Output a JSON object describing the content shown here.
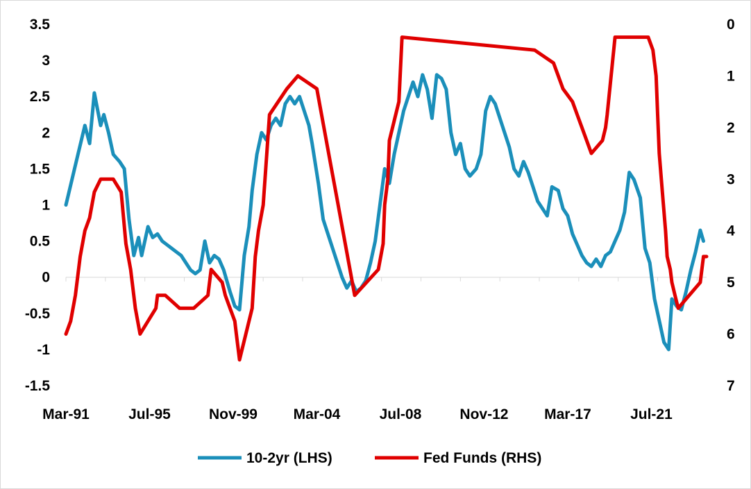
{
  "chart_data": {
    "type": "line",
    "title": "",
    "x_tick_labels": [
      "Mar-91",
      "Jul-95",
      "Nov-99",
      "Mar-04",
      "Jul-08",
      "Nov-12",
      "Mar-17",
      "Jul-21"
    ],
    "x_range": [
      "1991-03",
      "2025-01"
    ],
    "y_left": {
      "range": [
        -1.5,
        3.5
      ],
      "ticks": [
        "-1.5",
        "-1",
        "-0.5",
        "0",
        "0.5",
        "1",
        "1.5",
        "2",
        "2.5",
        "3",
        "3.5"
      ]
    },
    "y_right": {
      "range": [
        7,
        0
      ],
      "inverted": true,
      "ticks": [
        "0",
        "1",
        "2",
        "3",
        "4",
        "5",
        "6",
        "7"
      ]
    },
    "grid": false,
    "legend_position": "bottom",
    "series": [
      {
        "name": "10-2yr (LHS)",
        "axis": "left",
        "color": "#1b8fba",
        "x": [
          "1991-03",
          "1991-09",
          "1992-03",
          "1992-06",
          "1992-09",
          "1993-01",
          "1993-03",
          "1993-06",
          "1993-09",
          "1994-01",
          "1994-04",
          "1994-07",
          "1994-10",
          "1995-01",
          "1995-03",
          "1995-07",
          "1995-10",
          "1996-01",
          "1996-04",
          "1996-07",
          "1996-10",
          "1997-01",
          "1997-04",
          "1997-07",
          "1997-10",
          "1998-01",
          "1998-04",
          "1998-07",
          "1998-10",
          "1999-01",
          "1999-04",
          "1999-07",
          "1999-11",
          "2000-02",
          "2000-05",
          "2000-08",
          "2000-11",
          "2001-01",
          "2001-04",
          "2001-07",
          "2001-10",
          "2002-01",
          "2002-04",
          "2002-07",
          "2002-10",
          "2003-01",
          "2003-04",
          "2003-07",
          "2003-10",
          "2004-01",
          "2004-03",
          "2004-07",
          "2004-10",
          "2005-01",
          "2005-04",
          "2005-07",
          "2005-10",
          "2006-01",
          "2006-04",
          "2006-07",
          "2006-10",
          "2007-01",
          "2007-04",
          "2007-07",
          "2007-10",
          "2008-01",
          "2008-04",
          "2008-07",
          "2008-10",
          "2009-01",
          "2009-04",
          "2009-07",
          "2009-10",
          "2010-01",
          "2010-04",
          "2010-07",
          "2010-10",
          "2011-01",
          "2011-04",
          "2011-07",
          "2011-10",
          "2012-01",
          "2012-04",
          "2012-07",
          "2012-11",
          "2013-02",
          "2013-05",
          "2013-08",
          "2013-11",
          "2014-02",
          "2014-05",
          "2014-08",
          "2014-11",
          "2015-02",
          "2015-05",
          "2015-08",
          "2015-11",
          "2016-02",
          "2016-05",
          "2016-08",
          "2016-11",
          "2017-03",
          "2017-06",
          "2017-09",
          "2017-12",
          "2018-03",
          "2018-06",
          "2018-09",
          "2018-12",
          "2019-03",
          "2019-06",
          "2019-09",
          "2019-12",
          "2020-03",
          "2020-06",
          "2020-09",
          "2020-12",
          "2021-03",
          "2021-07",
          "2021-10",
          "2022-01",
          "2022-04",
          "2022-07",
          "2022-10",
          "2023-01",
          "2023-03",
          "2023-06",
          "2023-09",
          "2023-12",
          "2024-03",
          "2024-06",
          "2024-09",
          "2024-11"
        ],
        "y": [
          1.0,
          1.55,
          2.1,
          1.85,
          2.55,
          2.1,
          2.25,
          2.0,
          1.7,
          1.6,
          1.5,
          0.8,
          0.3,
          0.55,
          0.3,
          0.7,
          0.55,
          0.6,
          0.5,
          0.45,
          0.4,
          0.35,
          0.3,
          0.2,
          0.1,
          0.05,
          0.1,
          0.5,
          0.2,
          0.3,
          0.25,
          0.1,
          -0.2,
          -0.4,
          -0.45,
          0.3,
          0.7,
          1.2,
          1.7,
          2.0,
          1.9,
          2.1,
          2.2,
          2.1,
          2.4,
          2.5,
          2.4,
          2.5,
          2.3,
          2.1,
          1.85,
          1.3,
          0.8,
          0.6,
          0.4,
          0.2,
          0.0,
          -0.15,
          -0.05,
          -0.2,
          -0.15,
          -0.05,
          0.2,
          0.5,
          1.0,
          1.5,
          1.3,
          1.7,
          2.0,
          2.3,
          2.5,
          2.7,
          2.5,
          2.8,
          2.6,
          2.2,
          2.8,
          2.75,
          2.6,
          2.0,
          1.7,
          1.85,
          1.5,
          1.4,
          1.5,
          1.7,
          2.3,
          2.5,
          2.4,
          2.2,
          2.0,
          1.8,
          1.5,
          1.4,
          1.6,
          1.45,
          1.25,
          1.05,
          0.95,
          0.85,
          1.25,
          1.2,
          0.95,
          0.85,
          0.6,
          0.45,
          0.3,
          0.2,
          0.15,
          0.25,
          0.15,
          0.3,
          0.35,
          0.5,
          0.65,
          0.9,
          1.45,
          1.35,
          1.1,
          0.4,
          0.2,
          -0.3,
          -0.6,
          -0.9,
          -1.0,
          -0.3,
          -0.4,
          -0.45,
          -0.2,
          0.1,
          0.35,
          0.65,
          0.5
        ]
      },
      {
        "name": "Fed Funds (RHS)",
        "axis": "right",
        "color": "#e00000",
        "x": [
          "1991-03",
          "1991-06",
          "1991-09",
          "1991-12",
          "1992-03",
          "1992-06",
          "1992-09",
          "1993-01",
          "1993-06",
          "1993-09",
          "1994-02",
          "1994-05",
          "1994-08",
          "1994-11",
          "1995-02",
          "1995-07",
          "1995-12",
          "1996-01",
          "1996-06",
          "1997-03",
          "1997-12",
          "1998-09",
          "1998-10",
          "1998-11",
          "1999-06",
          "1999-08",
          "1999-11",
          "2000-02",
          "2000-03",
          "2000-05",
          "2001-01",
          "2001-03",
          "2001-05",
          "2001-08",
          "2001-12",
          "2002-11",
          "2003-06",
          "2004-06",
          "2004-09",
          "2004-12",
          "2005-03",
          "2005-06",
          "2005-09",
          "2005-12",
          "2006-03",
          "2006-06",
          "2007-09",
          "2007-12",
          "2008-01",
          "2008-03",
          "2008-04",
          "2008-10",
          "2008-12",
          "2015-12",
          "2016-12",
          "2017-03",
          "2017-06",
          "2017-12",
          "2018-03",
          "2018-06",
          "2018-09",
          "2018-12",
          "2019-07",
          "2019-09",
          "2019-10",
          "2020-03",
          "2021-12",
          "2022-03",
          "2022-05",
          "2022-06",
          "2022-07",
          "2022-09",
          "2022-11",
          "2022-12",
          "2023-02",
          "2023-03",
          "2023-05",
          "2023-07",
          "2024-09",
          "2024-11",
          "2025-01"
        ],
        "y": [
          6.0,
          5.75,
          5.25,
          4.5,
          4.0,
          3.75,
          3.25,
          3.0,
          3.0,
          3.0,
          3.25,
          4.25,
          4.75,
          5.5,
          6.0,
          5.75,
          5.5,
          5.25,
          5.25,
          5.5,
          5.5,
          5.25,
          5.0,
          4.75,
          5.0,
          5.25,
          5.5,
          5.75,
          6.0,
          6.5,
          5.5,
          4.5,
          4.0,
          3.5,
          1.75,
          1.25,
          1.0,
          1.25,
          1.75,
          2.25,
          2.75,
          3.25,
          3.75,
          4.25,
          4.75,
          5.25,
          4.75,
          4.25,
          3.5,
          3.0,
          2.25,
          1.5,
          0.25,
          0.5,
          0.75,
          1.0,
          1.25,
          1.5,
          1.75,
          2.0,
          2.25,
          2.5,
          2.25,
          2.0,
          1.75,
          0.25,
          0.25,
          0.5,
          1.0,
          1.75,
          2.5,
          3.25,
          4.0,
          4.5,
          4.75,
          5.0,
          5.25,
          5.5,
          5.0,
          4.5,
          4.5
        ]
      }
    ]
  }
}
